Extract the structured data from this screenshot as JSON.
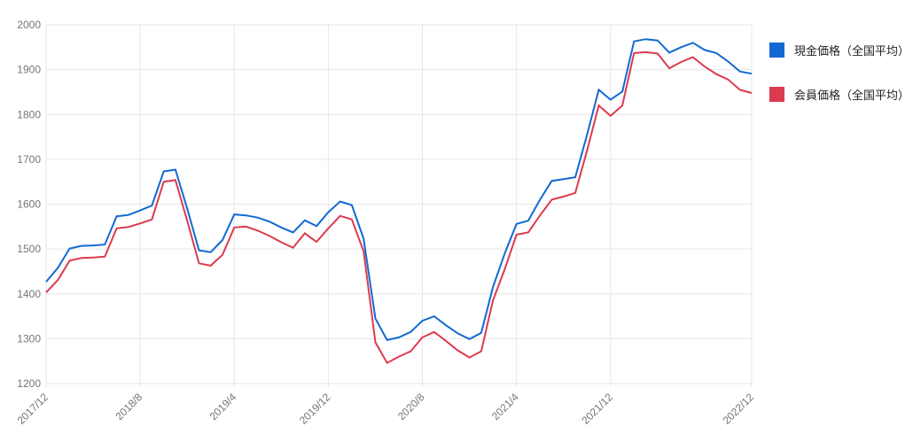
{
  "chart_data": {
    "type": "line",
    "title": "",
    "legend_position": "right",
    "grid": true,
    "grid_color": "#e6e6e6",
    "axis_label_color": "#757575",
    "ylim": [
      1200,
      2000
    ],
    "y_ticks": [
      2000,
      1900,
      1800,
      1700,
      1600,
      1500,
      1400,
      1300,
      1200
    ],
    "x_tick_labels": [
      "2017/12",
      "2018/8",
      "2019/4",
      "2019/12",
      "2020/8",
      "2021/4",
      "2021/12",
      "2022/12"
    ],
    "x_tick_indices": [
      0,
      8,
      16,
      24,
      32,
      40,
      48,
      60
    ],
    "x": [
      "2017/12",
      "2018/1",
      "2018/2",
      "2018/3",
      "2018/4",
      "2018/5",
      "2018/6",
      "2018/7",
      "2018/8",
      "2018/9",
      "2018/10",
      "2018/11",
      "2018/12",
      "2019/1",
      "2019/2",
      "2019/3",
      "2019/4",
      "2019/5",
      "2019/6",
      "2019/7",
      "2019/8",
      "2019/9",
      "2019/10",
      "2019/11",
      "2019/12",
      "2020/1",
      "2020/2",
      "2020/3",
      "2020/4",
      "2020/5",
      "2020/6",
      "2020/7",
      "2020/8",
      "2020/9",
      "2020/10",
      "2020/11",
      "2020/12",
      "2021/1",
      "2021/2",
      "2021/3",
      "2021/4",
      "2021/5",
      "2021/6",
      "2021/7",
      "2021/8",
      "2021/9",
      "2021/10",
      "2021/11",
      "2021/12",
      "2022/1",
      "2022/2",
      "2022/3",
      "2022/4",
      "2022/5",
      "2022/6",
      "2022/7",
      "2022/8",
      "2022/9",
      "2022/10",
      "2022/11",
      "2022/12"
    ],
    "series": [
      {
        "name": "現金価格（全国平均）",
        "color": "#1269d3",
        "values": [
          1427,
          1458,
          1501,
          1507,
          1508,
          1510,
          1573,
          1576,
          1586,
          1597,
          1673,
          1677,
          1590,
          1497,
          1493,
          1520,
          1577,
          1575,
          1570,
          1561,
          1548,
          1537,
          1564,
          1551,
          1582,
          1606,
          1598,
          1523,
          1345,
          1297,
          1303,
          1315,
          1340,
          1350,
          1330,
          1312,
          1299,
          1313,
          1415,
          1490,
          1556,
          1563,
          1610,
          1652,
          1656,
          1660,
          1755,
          1855,
          1833,
          1851,
          1963,
          1968,
          1965,
          1938,
          1950,
          1960,
          1944,
          1937,
          1918,
          1896,
          1891
        ]
      },
      {
        "name": "会員価格（全国平均）",
        "color": "#dc3a4f",
        "values": [
          1403,
          1431,
          1474,
          1480,
          1481,
          1483,
          1546,
          1549,
          1557,
          1566,
          1650,
          1654,
          1563,
          1468,
          1463,
          1487,
          1548,
          1550,
          1541,
          1529,
          1515,
          1503,
          1535,
          1516,
          1546,
          1574,
          1566,
          1495,
          1292,
          1246,
          1260,
          1272,
          1303,
          1315,
          1295,
          1274,
          1258,
          1272,
          1385,
          1455,
          1532,
          1537,
          1575,
          1610,
          1617,
          1625,
          1720,
          1820,
          1797,
          1820,
          1937,
          1939,
          1936,
          1903,
          1917,
          1928,
          1907,
          1890,
          1878,
          1855,
          1848
        ]
      }
    ]
  }
}
